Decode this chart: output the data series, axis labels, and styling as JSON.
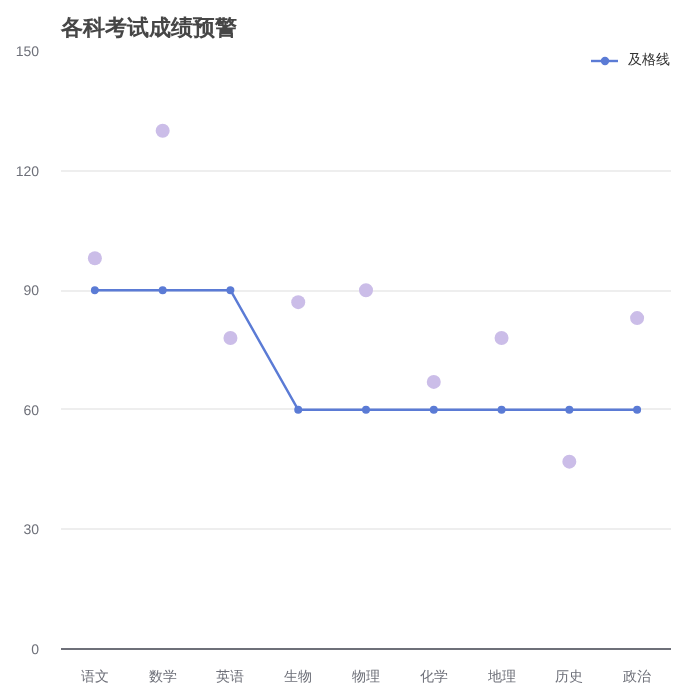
{
  "chart_data": {
    "type": "line",
    "title": "各科考试成绩预警",
    "categories": [
      "语文",
      "数学",
      "英语",
      "生物",
      "物理",
      "化学",
      "地理",
      "历史",
      "政治"
    ],
    "series": [
      {
        "name": "及格线",
        "color": "#5b7bd5",
        "marker": "circle",
        "values": [
          90,
          90,
          90,
          60,
          60,
          60,
          60,
          60,
          60
        ]
      },
      {
        "type": "scatter",
        "color": "#cbbde8",
        "marker": "circle",
        "values": [
          98,
          130,
          78,
          87,
          90,
          67,
          78,
          47,
          83
        ]
      }
    ],
    "ylim": [
      0,
      150
    ],
    "yticks": [
      0,
      30,
      60,
      90,
      120,
      150
    ],
    "grid": "y",
    "legend": "top right"
  }
}
